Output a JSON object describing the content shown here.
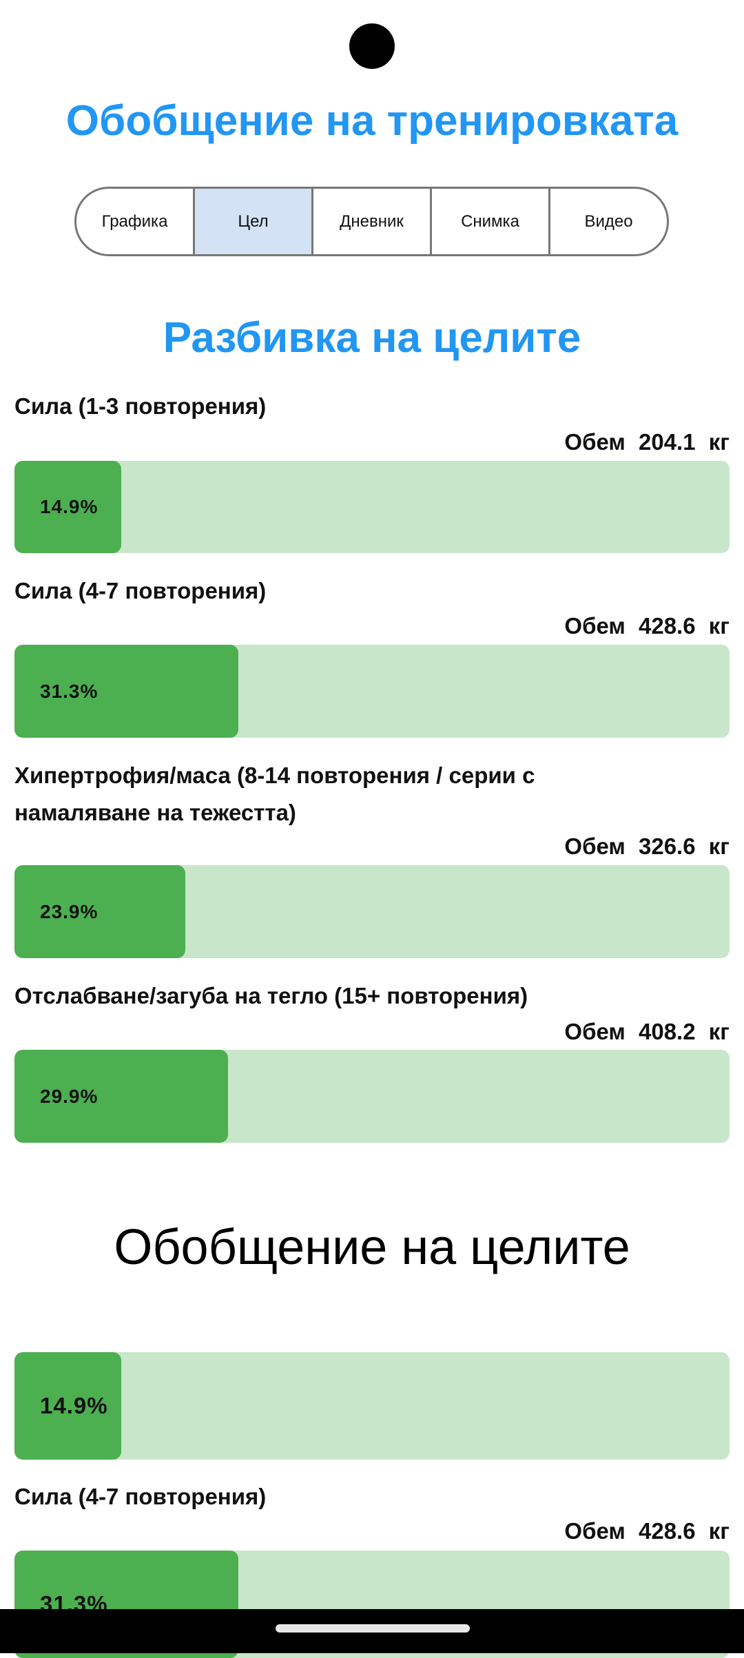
{
  "header": {
    "title": "Обобщение на тренировката"
  },
  "tabs": [
    {
      "label": "Графика"
    },
    {
      "label": "Цел",
      "active": true
    },
    {
      "label": "Дневник"
    },
    {
      "label": "Снимка"
    },
    {
      "label": "Видео"
    }
  ],
  "breakdown": {
    "title": "Разбивка на целите",
    "items": [
      {
        "label": "Сила (1-3 повторения)",
        "volume_label": "Обем",
        "volume": "204.1 кг",
        "percent_text": "14.9%",
        "percent": 14.9
      },
      {
        "label": "Сила (4-7 повторения)",
        "volume_label": "Обем",
        "volume": "428.6 кг",
        "percent_text": "31.3%",
        "percent": 31.3
      },
      {
        "label": "Хипертрофия/маса (8-14 повторения / серии с намаляване на тежестта)",
        "volume_label": "Обем",
        "volume": "326.6 кг",
        "percent_text": "23.9%",
        "percent": 23.9
      },
      {
        "label": "Отслабване/загуба на тегло (15+ повторения)",
        "volume_label": "Обем",
        "volume": "408.2 кг",
        "percent_text": "29.9%",
        "percent": 29.9
      }
    ]
  },
  "summary": {
    "title": "Обобщение на целите",
    "items": [
      {
        "percent_text": "14.9%",
        "percent": 14.9
      },
      {
        "label": "Сила (4-7 повторения)",
        "volume_label": "Обем",
        "volume": "428.6 кг",
        "percent_text": "31.3%",
        "percent": 31.3
      }
    ]
  },
  "colors": {
    "accent": "#2196F3",
    "bar_fill": "#4CAF50",
    "bar_track": "#C8E6C9",
    "active_tab": "#D3E3F5"
  }
}
